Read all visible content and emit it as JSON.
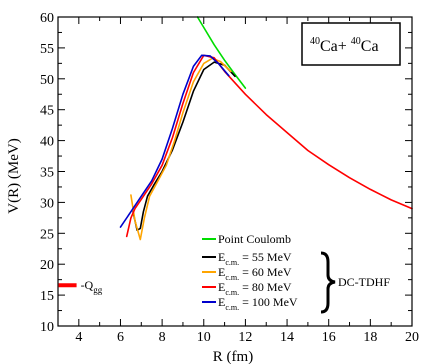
{
  "chart_data": {
    "type": "line",
    "xlabel": "R (fm)",
    "ylabel": "V(R) (MeV)",
    "xlim": [
      3,
      20
    ],
    "ylim": [
      10,
      60
    ],
    "xticks": [
      4,
      6,
      8,
      10,
      12,
      14,
      16,
      18,
      20
    ],
    "yticks": [
      10,
      15,
      20,
      25,
      30,
      35,
      40,
      45,
      50,
      55,
      60
    ],
    "system_label": {
      "pre": "40",
      "a": "Ca+ ",
      "pre2": "40",
      "b": "Ca"
    },
    "group_label": "DC-TDHF",
    "qgg": {
      "prefix": "-Q",
      "sub": "gg",
      "x": 3.7,
      "y": 16.6,
      "color": "#ff0000"
    },
    "legend": {
      "point_coulomb": "Point Coulomb",
      "energy_items": [
        {
          "pre": "E",
          "sub": "c.m.",
          "post": " = 55 MeV",
          "color": "#000000"
        },
        {
          "pre": "E",
          "sub": "c.m.",
          "post": " = 60 MeV",
          "color": "#ffa500"
        },
        {
          "pre": "E",
          "sub": "c.m.",
          "post": " = 80 MeV",
          "color": "#ff0000"
        },
        {
          "pre": "E",
          "sub": "c.m.",
          "post": " = 100 MeV",
          "color": "#0000cc"
        }
      ]
    },
    "series": [
      {
        "name": "Point Coulomb",
        "color": "#00dd00",
        "x": [
          9.7,
          10.0,
          10.5,
          11.0,
          11.5,
          12.0
        ],
        "y": [
          60.0,
          58.3,
          55.5,
          53.0,
          50.7,
          48.5
        ]
      },
      {
        "name": "E_c.m. = 55 MeV",
        "color": "#000000",
        "x": [
          6.6,
          6.8,
          6.95,
          7.1,
          7.3,
          7.6,
          8.0,
          8.5,
          9.0,
          9.5,
          10.0,
          10.5,
          11.0,
          11.5
        ],
        "y": [
          28.5,
          25.5,
          25.8,
          28.5,
          31.0,
          32.8,
          35.0,
          38.5,
          43.0,
          48.0,
          51.5,
          52.7,
          52.2,
          50.4
        ]
      },
      {
        "name": "E_c.m. = 60 MeV",
        "color": "#ffa500",
        "x": [
          6.5,
          6.7,
          6.95,
          7.15,
          7.4,
          7.8,
          8.2,
          8.6,
          9.0,
          9.5,
          10.0,
          10.4,
          10.8,
          11.3
        ],
        "y": [
          31.2,
          27.0,
          24.0,
          27.5,
          31.0,
          33.5,
          36.0,
          40.0,
          44.5,
          49.5,
          52.5,
          53.3,
          52.8,
          51.2
        ]
      },
      {
        "name": "E_c.m. = 80 MeV",
        "color": "#ff0000",
        "x": [
          6.3,
          6.5,
          6.7,
          7.0,
          7.5,
          8.0,
          8.5,
          9.0,
          9.5,
          10.0,
          10.5,
          11.0,
          12.0,
          13.0,
          14.0,
          15.0,
          16.0,
          17.0,
          18.0,
          19.0,
          20.0
        ],
        "y": [
          24.5,
          27.5,
          29.0,
          30.5,
          33.0,
          36.0,
          40.5,
          46.0,
          51.0,
          53.8,
          53.4,
          51.2,
          47.5,
          44.2,
          41.3,
          38.4,
          36.1,
          34.0,
          32.1,
          30.4,
          29.0
        ]
      },
      {
        "name": "E_c.m. = 100 MeV",
        "color": "#0000cc",
        "x": [
          6.0,
          6.5,
          7.0,
          7.5,
          8.0,
          8.5,
          9.0,
          9.5,
          9.9,
          10.3,
          10.7,
          11.2
        ],
        "y": [
          26.0,
          28.5,
          31.0,
          33.5,
          37.0,
          42.0,
          47.5,
          52.0,
          53.8,
          53.7,
          52.5,
          50.5
        ]
      }
    ]
  }
}
